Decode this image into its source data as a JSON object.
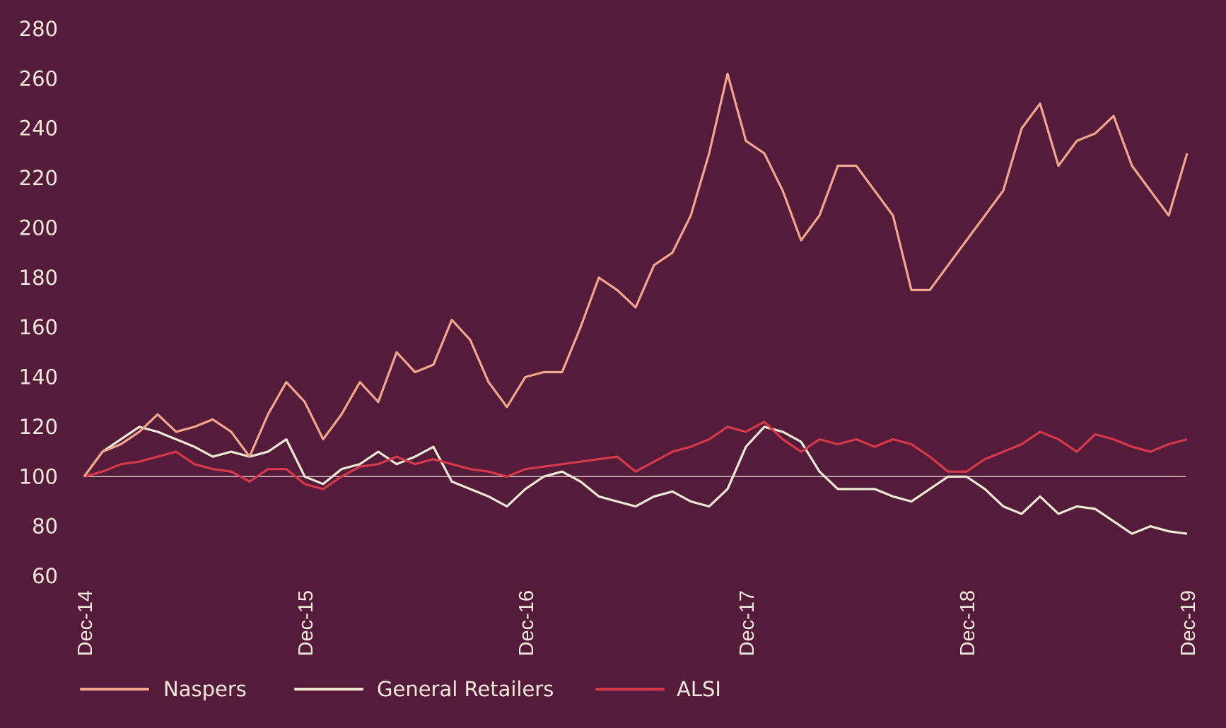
{
  "chart_data": {
    "type": "line",
    "title": "",
    "xlabel": "",
    "ylabel": "",
    "ylim": [
      60,
      280
    ],
    "yticks": [
      "280",
      "260",
      "240",
      "220",
      "200",
      "180",
      "160",
      "140",
      "120",
      "100",
      "80",
      "60"
    ],
    "xticks": [
      "Dec-14",
      "Dec-15",
      "Dec-16",
      "Dec-17",
      "Dec-18",
      "Dec-19"
    ],
    "x_frequency": "monthly, Dec-14 to Dec-19",
    "reference_line": 100,
    "grid": false,
    "legend_position": "bottom",
    "series": [
      {
        "name": "Naspers",
        "color": "#f4a58f",
        "values": [
          100,
          110,
          113,
          118,
          125,
          118,
          120,
          123,
          118,
          108,
          125,
          138,
          130,
          115,
          125,
          138,
          130,
          150,
          142,
          145,
          163,
          155,
          138,
          128,
          140,
          142,
          142,
          160,
          180,
          175,
          168,
          185,
          190,
          205,
          230,
          262,
          235,
          230,
          215,
          195,
          205,
          225,
          225,
          215,
          205,
          175,
          175,
          185,
          195,
          205,
          215,
          240,
          250,
          225,
          235,
          238,
          245,
          225,
          215,
          205,
          230
        ]
      },
      {
        "name": "General Retailers",
        "color": "#ede9d5",
        "values": [
          100,
          110,
          115,
          120,
          118,
          115,
          112,
          108,
          110,
          108,
          110,
          115,
          100,
          97,
          103,
          105,
          110,
          105,
          108,
          112,
          98,
          95,
          92,
          88,
          95,
          100,
          102,
          98,
          92,
          90,
          88,
          92,
          94,
          90,
          88,
          95,
          112,
          120,
          118,
          114,
          102,
          95,
          95,
          95,
          92,
          90,
          95,
          100,
          100,
          95,
          88,
          85,
          92,
          85,
          88,
          87,
          82,
          77,
          80,
          78,
          77
        ]
      },
      {
        "name": "ALSI",
        "color": "#d63a4a",
        "values": [
          100,
          102,
          105,
          106,
          108,
          110,
          105,
          103,
          102,
          98,
          103,
          103,
          97,
          95,
          100,
          104,
          105,
          108,
          105,
          107,
          105,
          103,
          102,
          100,
          103,
          104,
          105,
          106,
          107,
          108,
          102,
          106,
          110,
          112,
          115,
          120,
          118,
          122,
          115,
          110,
          115,
          113,
          115,
          112,
          115,
          113,
          108,
          102,
          102,
          107,
          110,
          113,
          118,
          115,
          110,
          117,
          115,
          112,
          110,
          113,
          115
        ]
      }
    ]
  }
}
